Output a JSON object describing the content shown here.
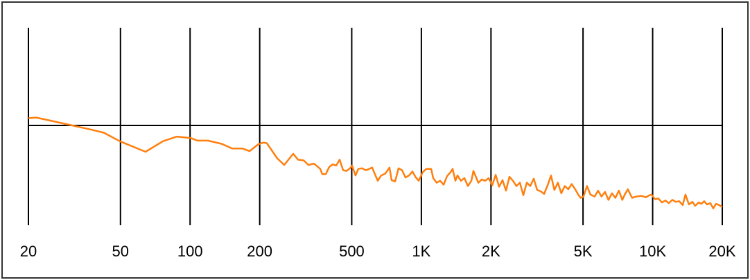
{
  "chart_data": {
    "type": "line",
    "title": "",
    "xlabel": "",
    "ylabel": "",
    "x_scale": "log",
    "xlim": [
      20,
      20000
    ],
    "ylim": [
      -15,
      15
    ],
    "reference_line": 0,
    "grid": "vertical lines at ticks",
    "x_ticks": [
      20,
      50,
      100,
      200,
      500,
      1000,
      2000,
      5000,
      10000,
      20000
    ],
    "x_tick_labels": [
      "20",
      "50",
      "100",
      "200",
      "500",
      "1K",
      "2K",
      "5K",
      "10K",
      "20K"
    ],
    "series": [
      {
        "color": "#ff7f0e",
        "points": [
          [
            20,
            1.1
          ],
          [
            21.6,
            1.2
          ],
          [
            24.4,
            0.8
          ],
          [
            30.1,
            0.1
          ],
          [
            37.0,
            -0.6
          ],
          [
            42.4,
            -1.1
          ],
          [
            49.7,
            -2.4
          ],
          [
            64.2,
            -4.0
          ],
          [
            76.3,
            -2.4
          ],
          [
            87.6,
            -1.7
          ],
          [
            100.5,
            -1.9
          ],
          [
            107.7,
            -2.3
          ],
          [
            119.5,
            -2.3
          ],
          [
            137.2,
            -2.8
          ],
          [
            152.1,
            -3.5
          ],
          [
            168.7,
            -3.5
          ],
          [
            180.7,
            -3.9
          ],
          [
            196.3,
            -2.9
          ],
          [
            207.4,
            -2.6
          ],
          [
            214.7,
            -2.7
          ],
          [
            238.2,
            -5.0
          ],
          [
            255.2,
            -6.0
          ],
          [
            279.2,
            -4.3
          ],
          [
            292.9,
            -5.2
          ],
          [
            309.6,
            -5.3
          ],
          [
            324.9,
            -6.0
          ],
          [
            343.3,
            -5.8
          ],
          [
            365.3,
            -6.6
          ],
          [
            373.0,
            -7.4
          ],
          [
            386.0,
            -7.4
          ],
          [
            399.6,
            -6.3
          ],
          [
            413.6,
            -5.9
          ],
          [
            428.2,
            -6.1
          ],
          [
            443.2,
            -5.2
          ],
          [
            458.7,
            -6.8
          ],
          [
            474.8,
            -6.9
          ],
          [
            491.5,
            -6.5
          ],
          [
            501.7,
            -6.1
          ],
          [
            519.3,
            -7.6
          ],
          [
            533.8,
            -6.6
          ],
          [
            552.5,
            -6.5
          ],
          [
            576.0,
            -6.8
          ],
          [
            612.8,
            -6.4
          ],
          [
            647.6,
            -8.4
          ],
          [
            670.3,
            -7.6
          ],
          [
            698.7,
            -7.3
          ],
          [
            728.3,
            -6.4
          ],
          [
            743.6,
            -8.3
          ],
          [
            769.7,
            -8.5
          ],
          [
            796.7,
            -6.5
          ],
          [
            824.7,
            -6.8
          ],
          [
            853.6,
            -7.9
          ],
          [
            883.6,
            -7.6
          ],
          [
            914.6,
            -7.0
          ],
          [
            946.7,
            -7.9
          ],
          [
            973.2,
            -8.4
          ],
          [
            1014,
            -7.1
          ],
          [
            1050,
            -6.6
          ],
          [
            1102,
            -6.6
          ],
          [
            1125,
            -8.0
          ],
          [
            1165,
            -8.7
          ],
          [
            1205,
            -8.4
          ],
          [
            1248,
            -9.0
          ],
          [
            1291,
            -7.7
          ],
          [
            1337,
            -7.1
          ],
          [
            1365,
            -6.6
          ],
          [
            1403,
            -8.4
          ],
          [
            1433,
            -7.6
          ],
          [
            1483,
            -8.4
          ],
          [
            1535,
            -8.0
          ],
          [
            1589,
            -9.2
          ],
          [
            1645,
            -8.4
          ],
          [
            1679,
            -6.9
          ],
          [
            1763,
            -8.7
          ],
          [
            1825,
            -8.2
          ],
          [
            1889,
            -8.4
          ],
          [
            1955,
            -8.0
          ],
          [
            2024,
            -9.1
          ],
          [
            2095,
            -7.5
          ],
          [
            2168,
            -9.3
          ],
          [
            2244,
            -8.3
          ],
          [
            2323,
            -9.9
          ],
          [
            2404,
            -7.8
          ],
          [
            2489,
            -8.4
          ],
          [
            2576,
            -9.2
          ],
          [
            2666,
            -8.7
          ],
          [
            2760,
            -10.6
          ],
          [
            2857,
            -8.7
          ],
          [
            2957,
            -9.2
          ],
          [
            3060,
            -8.1
          ],
          [
            3168,
            -9.8
          ],
          [
            3279,
            -10.0
          ],
          [
            3394,
            -10.4
          ],
          [
            3513,
            -9.1
          ],
          [
            3636,
            -7.6
          ],
          [
            3759,
            -9.8
          ],
          [
            3891,
            -8.7
          ],
          [
            4028,
            -10.3
          ],
          [
            4169,
            -9.2
          ],
          [
            4316,
            -9.7
          ],
          [
            4467,
            -8.9
          ],
          [
            4624,
            -9.7
          ],
          [
            4786,
            -10.6
          ],
          [
            4886,
            -11.0
          ],
          [
            5024,
            -10.8
          ],
          [
            5200,
            -9.2
          ],
          [
            5383,
            -10.5
          ],
          [
            5612,
            -10.8
          ],
          [
            5809,
            -9.9
          ],
          [
            6013,
            -10.8
          ],
          [
            6224,
            -10.1
          ],
          [
            6442,
            -11.3
          ],
          [
            6668,
            -10.3
          ],
          [
            6902,
            -11.0
          ],
          [
            7144,
            -9.9
          ],
          [
            7394,
            -11.3
          ],
          [
            7602,
            -10.4
          ],
          [
            7815,
            -9.7
          ],
          [
            8147,
            -11.0
          ],
          [
            8492,
            -10.8
          ],
          [
            8914,
            -10.7
          ],
          [
            9357,
            -10.9
          ],
          [
            9685,
            -10.6
          ],
          [
            9888,
            -10.5
          ],
          [
            10235,
            -11.2
          ],
          [
            10594,
            -11.1
          ],
          [
            10965,
            -11.7
          ],
          [
            11350,
            -11.4
          ],
          [
            11748,
            -11.8
          ],
          [
            12160,
            -11.3
          ],
          [
            12587,
            -11.6
          ],
          [
            13028,
            -11.5
          ],
          [
            13485,
            -12.1
          ],
          [
            13864,
            -10.5
          ],
          [
            14350,
            -12.0
          ],
          [
            14853,
            -11.6
          ],
          [
            15270,
            -12.2
          ],
          [
            15806,
            -11.7
          ],
          [
            16250,
            -11.9
          ],
          [
            16706,
            -11.5
          ],
          [
            17175,
            -12.0
          ],
          [
            17777,
            -11.8
          ],
          [
            18277,
            -12.6
          ],
          [
            18790,
            -11.9
          ],
          [
            19400,
            -12.1
          ],
          [
            20000,
            -12.4
          ]
        ]
      }
    ]
  }
}
